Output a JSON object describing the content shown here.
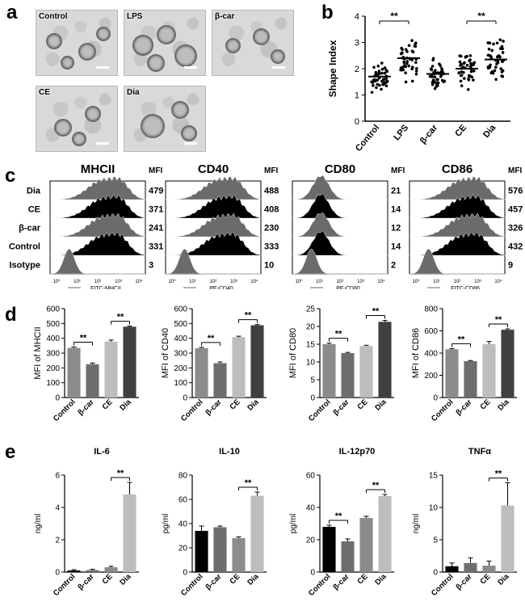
{
  "panel_labels": {
    "a": "a",
    "b": "b",
    "c": "c",
    "d": "d",
    "e": "e"
  },
  "micrographs": [
    {
      "label": "Control"
    },
    {
      "label": "LPS"
    },
    {
      "label": "β-car"
    },
    {
      "label": "CE"
    },
    {
      "label": "Dia"
    }
  ],
  "colors": {
    "control": "#8c8c8c",
    "bcar": "#6e6e6e",
    "ce": "#bdbdbd",
    "dia": "#404040",
    "hist_gray": "#6b6b6b",
    "hist_black": "#000000"
  },
  "chart_data": [
    {
      "id": "shape-index",
      "type": "scatter",
      "ylabel": "Shape Index",
      "categories": [
        "Control",
        "LPS",
        "β-car",
        "CE",
        "Dia"
      ],
      "ylim": [
        0,
        4
      ],
      "yticks": [
        0,
        1,
        2,
        3,
        4
      ],
      "medians": [
        1.7,
        2.4,
        1.8,
        2.0,
        2.35
      ],
      "spreads": [
        0.55,
        0.9,
        0.55,
        0.75,
        0.8
      ],
      "n_points": 45,
      "significance": [
        {
          "from": 0,
          "to": 1,
          "label": "**"
        },
        {
          "from": 3,
          "to": 4,
          "label": "**"
        }
      ]
    },
    {
      "id": "flow-histograms",
      "type": "histogram",
      "row_labels": [
        "Dia",
        "CE",
        "β-car",
        "Control",
        "Isotype"
      ],
      "panels": [
        {
          "title": "MHCII",
          "mfi_header": "MFI",
          "mfi": [
            "479",
            "371",
            "241",
            "331",
            "3"
          ],
          "xlabel": "FITC-MHCII"
        },
        {
          "title": "CD40",
          "mfi_header": "MFI",
          "mfi": [
            "488",
            "408",
            "230",
            "333",
            "10"
          ],
          "xlabel": "PE-CD40"
        },
        {
          "title": "CD80",
          "mfi_header": "MFI",
          "mfi": [
            "21",
            "14",
            "12",
            "14",
            "2"
          ],
          "xlabel": "PE-CD80"
        },
        {
          "title": "CD86",
          "mfi_header": "MFI",
          "mfi": [
            "576",
            "457",
            "326",
            "432",
            "9"
          ],
          "xlabel": "FITC-CD86"
        }
      ],
      "x_ticks": [
        "10⁰",
        "10¹",
        "10²",
        "10³",
        "10⁴"
      ]
    },
    {
      "id": "mfi-mhcii",
      "type": "bar",
      "ylabel": "MFI of MHCII",
      "categories": [
        "Control",
        "β-car",
        "CE",
        "Dia"
      ],
      "values": [
        335,
        225,
        378,
        478
      ],
      "errors": [
        6,
        8,
        10,
        4
      ],
      "ylim": [
        0,
        600
      ],
      "yticks": [
        0,
        100,
        200,
        300,
        400,
        500,
        600
      ],
      "significance": [
        {
          "from": 0,
          "to": 1,
          "label": "**"
        },
        {
          "from": 2,
          "to": 3,
          "label": "**"
        }
      ]
    },
    {
      "id": "mfi-cd40",
      "type": "bar",
      "ylabel": "MFI of CD40",
      "categories": [
        "Control",
        "β-car",
        "CE",
        "Dia"
      ],
      "values": [
        333,
        232,
        408,
        488
      ],
      "errors": [
        6,
        8,
        6,
        5
      ],
      "ylim": [
        0,
        600
      ],
      "yticks": [
        0,
        100,
        200,
        300,
        400,
        500,
        600
      ],
      "significance": [
        {
          "from": 0,
          "to": 1,
          "label": "**"
        },
        {
          "from": 2,
          "to": 3,
          "label": "**"
        }
      ]
    },
    {
      "id": "mfi-cd80",
      "type": "bar",
      "ylabel": "MFI of CD80",
      "categories": [
        "Control",
        "β-car",
        "CE",
        "Dia"
      ],
      "values": [
        15,
        12.5,
        14.5,
        21.3
      ],
      "errors": [
        0.3,
        0.2,
        0.2,
        0.4
      ],
      "ylim": [
        0,
        25
      ],
      "yticks": [
        0,
        5,
        10,
        15,
        20,
        25
      ],
      "significance": [
        {
          "from": 0,
          "to": 1,
          "label": "**"
        },
        {
          "from": 2,
          "to": 3,
          "label": "**"
        }
      ]
    },
    {
      "id": "mfi-cd86",
      "type": "bar",
      "ylabel": "MFI of CD86",
      "categories": [
        "Control",
        "β-car",
        "CE",
        "Dia"
      ],
      "values": [
        435,
        328,
        480,
        610
      ],
      "errors": [
        6,
        5,
        25,
        8
      ],
      "ylim": [
        0,
        800
      ],
      "yticks": [
        0,
        200,
        400,
        600,
        800
      ],
      "significance": [
        {
          "from": 0,
          "to": 1,
          "label": "**"
        },
        {
          "from": 2,
          "to": 3,
          "label": "**"
        }
      ]
    },
    {
      "id": "il6",
      "type": "bar",
      "title": "IL-6",
      "ylabel": "ng/ml",
      "categories": [
        "Control",
        "β-car",
        "CE",
        "Dia"
      ],
      "values": [
        0.1,
        0.12,
        0.3,
        4.8
      ],
      "errors": [
        0.05,
        0.05,
        0.06,
        0.75
      ],
      "ylim": [
        0,
        6
      ],
      "yticks": [
        0,
        2,
        4,
        6
      ],
      "significance": [
        {
          "from": 2,
          "to": 3,
          "label": "**"
        }
      ]
    },
    {
      "id": "il10",
      "type": "bar",
      "title": "IL-10",
      "ylabel": "pg/ml",
      "categories": [
        "Control",
        "β-car",
        "CE",
        "Dia"
      ],
      "values": [
        34,
        37,
        28,
        63
      ],
      "errors": [
        4,
        1,
        1,
        3
      ],
      "ylim": [
        0,
        80
      ],
      "yticks": [
        0,
        20,
        40,
        60,
        80
      ],
      "significance": [
        {
          "from": 2,
          "to": 3,
          "label": "**"
        }
      ]
    },
    {
      "id": "il12p70",
      "type": "bar",
      "title": "IL-12p70",
      "ylabel": "pg/ml",
      "categories": [
        "Control",
        "β-car",
        "CE",
        "Dia"
      ],
      "values": [
        28,
        19,
        33.5,
        47
      ],
      "errors": [
        1,
        1.5,
        1,
        1
      ],
      "ylim": [
        0,
        60
      ],
      "yticks": [
        0,
        20,
        40,
        60
      ],
      "significance": [
        {
          "from": 0,
          "to": 1,
          "label": "**"
        },
        {
          "from": 2,
          "to": 3,
          "label": "**"
        }
      ]
    },
    {
      "id": "tnfa",
      "type": "bar",
      "title": "TNFα",
      "ylabel": "ng/ml",
      "categories": [
        "Control",
        "β-car",
        "CE",
        "Dia"
      ],
      "values": [
        0.9,
        1.4,
        1.0,
        10.3
      ],
      "errors": [
        0.5,
        0.8,
        0.7,
        3.5
      ],
      "ylim": [
        0,
        15
      ],
      "yticks": [
        0,
        5,
        10,
        15
      ],
      "significance": [
        {
          "from": 2,
          "to": 3,
          "label": "**"
        }
      ]
    }
  ]
}
